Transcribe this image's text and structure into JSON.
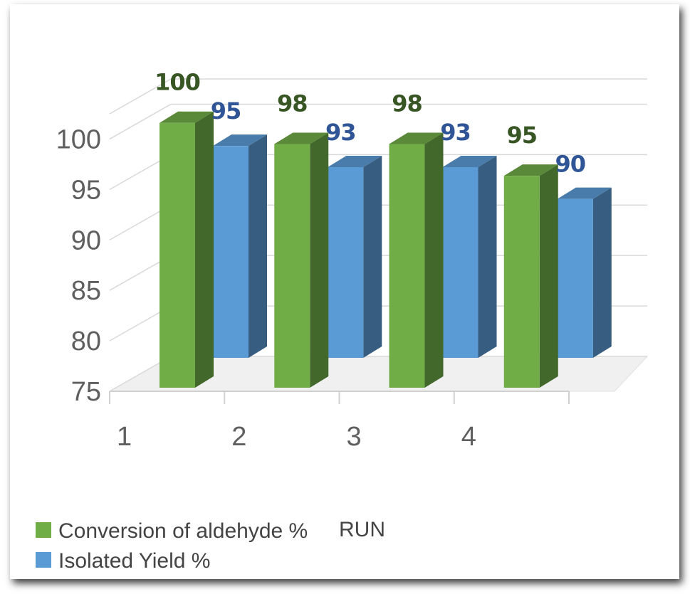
{
  "chart_data": {
    "type": "bar",
    "style": "3d-clustered-column",
    "categories": [
      "1",
      "2",
      "3",
      "4"
    ],
    "series": [
      {
        "name": "Conversion of aldehyde %",
        "values": [
          100,
          98,
          98,
          95
        ],
        "color": "#70ad47",
        "label_color": "#375623"
      },
      {
        "name": "Isolated Yield %",
        "values": [
          95,
          93,
          93,
          90
        ],
        "color": "#5b9bd5",
        "label_color": "#2f5597"
      }
    ],
    "xlabel": "RUN",
    "ylabel": "",
    "ylim": [
      75,
      100
    ],
    "yticks": [
      75,
      80,
      85,
      90,
      95,
      100
    ],
    "grid": true,
    "legend_position": "bottom-left",
    "data_labels": true
  }
}
